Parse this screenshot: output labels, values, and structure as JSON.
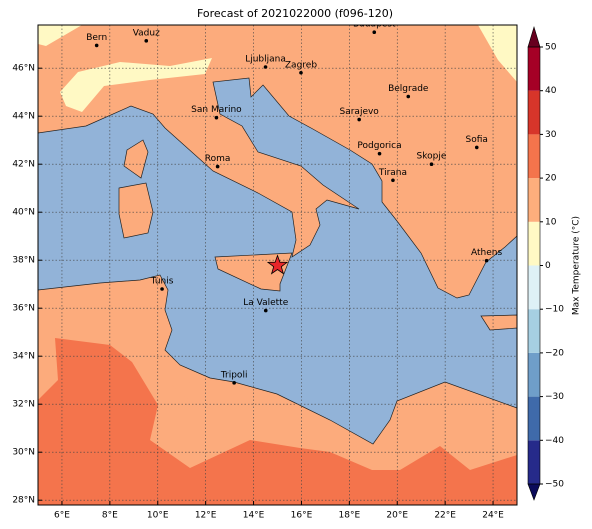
{
  "title": "Forecast of 2021022000 (f096-120)",
  "map": {
    "xlim": [
      5,
      25
    ],
    "ylim": [
      27.8,
      47.8
    ],
    "xticks": [
      {
        "value": 6,
        "label": "6°E"
      },
      {
        "value": 8,
        "label": "8°E"
      },
      {
        "value": 10,
        "label": "10°E"
      },
      {
        "value": 12,
        "label": "12°E"
      },
      {
        "value": 14,
        "label": "14°E"
      },
      {
        "value": 16,
        "label": "16°E"
      },
      {
        "value": 18,
        "label": "18°E"
      },
      {
        "value": 20,
        "label": "20°E"
      },
      {
        "value": 22,
        "label": "22°E"
      },
      {
        "value": 24,
        "label": "24°E"
      }
    ],
    "yticks": [
      {
        "value": 28,
        "label": "28°N"
      },
      {
        "value": 30,
        "label": "30°N"
      },
      {
        "value": 32,
        "label": "32°N"
      },
      {
        "value": 34,
        "label": "34°N"
      },
      {
        "value": 36,
        "label": "36°N"
      },
      {
        "value": 38,
        "label": "38°N"
      },
      {
        "value": 40,
        "label": "40°N"
      },
      {
        "value": 42,
        "label": "42°N"
      },
      {
        "value": 44,
        "label": "44°N"
      },
      {
        "value": 46,
        "label": "46°N"
      }
    ],
    "grid": true,
    "cities": [
      {
        "name": "Bern",
        "lon": 7.45,
        "lat": 46.95
      },
      {
        "name": "Vaduz",
        "lon": 9.52,
        "lat": 47.14
      },
      {
        "name": "Budapest",
        "lon": 19.04,
        "lat": 47.5
      },
      {
        "name": "Ljubljana",
        "lon": 14.5,
        "lat": 46.05
      },
      {
        "name": "Zagreb",
        "lon": 15.98,
        "lat": 45.81
      },
      {
        "name": "Belgrade",
        "lon": 20.46,
        "lat": 44.82
      },
      {
        "name": "San Marino",
        "lon": 12.45,
        "lat": 43.94
      },
      {
        "name": "Sarajevo",
        "lon": 18.41,
        "lat": 43.86
      },
      {
        "name": "Sofia",
        "lon": 23.32,
        "lat": 42.7
      },
      {
        "name": "Podgorica",
        "lon": 19.26,
        "lat": 42.44
      },
      {
        "name": "Skopje",
        "lon": 21.43,
        "lat": 42.0
      },
      {
        "name": "Roma",
        "lon": 12.5,
        "lat": 41.9
      },
      {
        "name": "Tirana",
        "lon": 19.82,
        "lat": 41.33
      },
      {
        "name": "Athens",
        "lon": 23.73,
        "lat": 37.98
      },
      {
        "name": "Tunis",
        "lon": 10.18,
        "lat": 36.8
      },
      {
        "name": "La Valette",
        "lon": 14.51,
        "lat": 35.9
      },
      {
        "name": "Tripoli",
        "lon": 13.19,
        "lat": 32.89
      }
    ],
    "marker": {
      "lon": 15.0,
      "lat": 37.78,
      "color": "#e8262a"
    }
  },
  "colorbar": {
    "label": "Max Temperature (°C)",
    "ticks": [
      {
        "value": -50,
        "label": "−50"
      },
      {
        "value": -40,
        "label": "−40"
      },
      {
        "value": -30,
        "label": "−30"
      },
      {
        "value": -20,
        "label": "−20"
      },
      {
        "value": -10,
        "label": "−10"
      },
      0,
      10,
      20,
      30,
      40,
      50
    ],
    "colors": [
      "#262a8a",
      "#3f6aaa",
      "#6f9ec9",
      "#a6cfe2",
      "#def1f6",
      "#fff9c4",
      "#fdae7c",
      "#f4744c",
      "#d7352a",
      "#a50026"
    ],
    "extend_colors": [
      "#0b0b5a",
      "#67001f"
    ]
  }
}
